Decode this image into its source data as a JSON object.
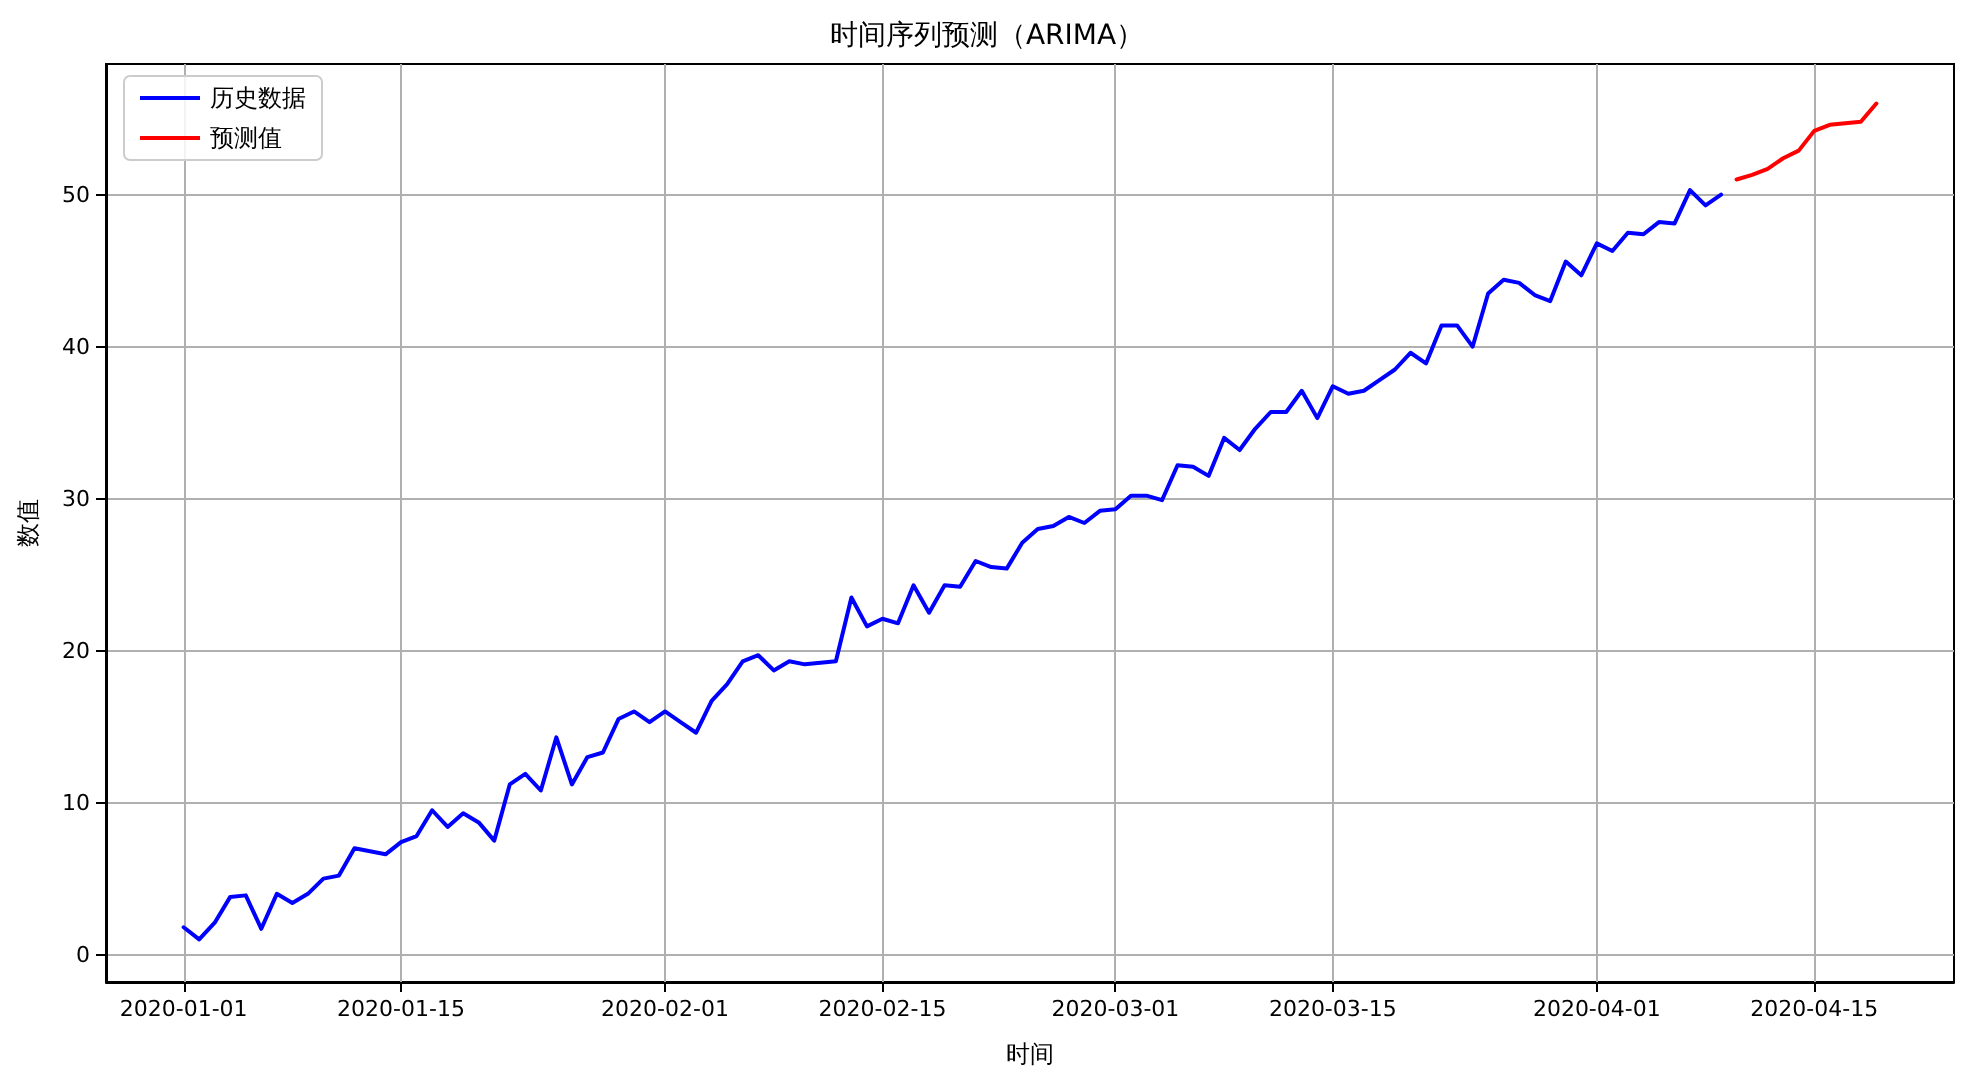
{
  "chart_data": {
    "type": "line",
    "title": "时间序列预测（ARIMA）",
    "xlabel": "时间",
    "ylabel": "数值",
    "xlim": [
      "2019-12-27",
      "2020-04-24"
    ],
    "xticks": [
      "2020-01-01",
      "2020-01-15",
      "2020-02-01",
      "2020-02-15",
      "2020-03-01",
      "2020-03-15",
      "2020-04-01",
      "2020-04-15"
    ],
    "ylim": [
      -1.8,
      58.6
    ],
    "yticks": [
      0,
      10,
      20,
      30,
      40,
      50
    ],
    "grid": true,
    "legend": "top left",
    "marker": "none",
    "line_style": "solid",
    "series": [
      {
        "name": "历史数据",
        "color": "#0000ff",
        "x": [
          "2020-01-01",
          "2020-01-02",
          "2020-01-03",
          "2020-01-04",
          "2020-01-05",
          "2020-01-06",
          "2020-01-07",
          "2020-01-08",
          "2020-01-09",
          "2020-01-10",
          "2020-01-11",
          "2020-01-12",
          "2020-01-13",
          "2020-01-14",
          "2020-01-15",
          "2020-01-16",
          "2020-01-17",
          "2020-01-18",
          "2020-01-19",
          "2020-01-20",
          "2020-01-21",
          "2020-01-22",
          "2020-01-23",
          "2020-01-24",
          "2020-01-25",
          "2020-01-26",
          "2020-01-27",
          "2020-01-28",
          "2020-01-29",
          "2020-01-30",
          "2020-01-31",
          "2020-02-01",
          "2020-02-02",
          "2020-02-03",
          "2020-02-04",
          "2020-02-05",
          "2020-02-06",
          "2020-02-07",
          "2020-02-08",
          "2020-02-09",
          "2020-02-10",
          "2020-02-11",
          "2020-02-12",
          "2020-02-13",
          "2020-02-14",
          "2020-02-15",
          "2020-02-16",
          "2020-02-17",
          "2020-02-18",
          "2020-02-19",
          "2020-02-20",
          "2020-02-21",
          "2020-02-22",
          "2020-02-23",
          "2020-02-24",
          "2020-02-25",
          "2020-02-26",
          "2020-02-27",
          "2020-02-28",
          "2020-02-29",
          "2020-03-01",
          "2020-03-02",
          "2020-03-03",
          "2020-03-04",
          "2020-03-05",
          "2020-03-06",
          "2020-03-07",
          "2020-03-08",
          "2020-03-09",
          "2020-03-10",
          "2020-03-11",
          "2020-03-12",
          "2020-03-13",
          "2020-03-14",
          "2020-03-15",
          "2020-03-16",
          "2020-03-17",
          "2020-03-18",
          "2020-03-19",
          "2020-03-20",
          "2020-03-21",
          "2020-03-22",
          "2020-03-23",
          "2020-03-24",
          "2020-03-25",
          "2020-03-26",
          "2020-03-27",
          "2020-03-28",
          "2020-03-29",
          "2020-03-30",
          "2020-03-31",
          "2020-04-01",
          "2020-04-02",
          "2020-04-03",
          "2020-04-04",
          "2020-04-05",
          "2020-04-06",
          "2020-04-07",
          "2020-04-08",
          "2020-04-09"
        ],
        "values": [
          1.8,
          1.0,
          2.1,
          3.8,
          3.9,
          1.7,
          4.0,
          3.4,
          4.0,
          5.0,
          5.2,
          7.0,
          6.8,
          6.6,
          7.4,
          7.8,
          9.5,
          8.4,
          9.3,
          8.7,
          7.5,
          11.2,
          11.9,
          10.8,
          14.3,
          11.2,
          13.0,
          13.3,
          15.5,
          16.0,
          15.3,
          16.0,
          15.3,
          14.6,
          16.7,
          17.8,
          19.3,
          19.7,
          18.7,
          19.3,
          19.1,
          19.2,
          19.3,
          23.5,
          21.6,
          22.1,
          21.8,
          24.3,
          22.5,
          24.3,
          24.2,
          25.9,
          25.5,
          25.4,
          27.1,
          28.0,
          28.2,
          28.8,
          28.4,
          29.2,
          29.3,
          30.2,
          30.2,
          29.9,
          32.2,
          32.1,
          31.5,
          34.0,
          33.2,
          34.6,
          35.7,
          35.7,
          37.1,
          35.3,
          37.4,
          36.9,
          37.1,
          37.8,
          38.5,
          39.6,
          38.9,
          41.4,
          41.4,
          40.0,
          43.5,
          44.4,
          44.2,
          43.4,
          43.0,
          45.6,
          44.7,
          46.8,
          46.3,
          47.5,
          47.4,
          48.2,
          48.1,
          50.3,
          49.3,
          50.0
        ]
      },
      {
        "name": "预测值",
        "color": "#ff0000",
        "x": [
          "2020-04-10",
          "2020-04-11",
          "2020-04-12",
          "2020-04-13",
          "2020-04-14",
          "2020-04-15",
          "2020-04-16",
          "2020-04-17",
          "2020-04-18",
          "2020-04-19"
        ],
        "values": [
          51.0,
          51.3,
          51.7,
          52.4,
          52.9,
          54.2,
          54.6,
          54.7,
          54.8,
          56.0
        ]
      }
    ]
  }
}
